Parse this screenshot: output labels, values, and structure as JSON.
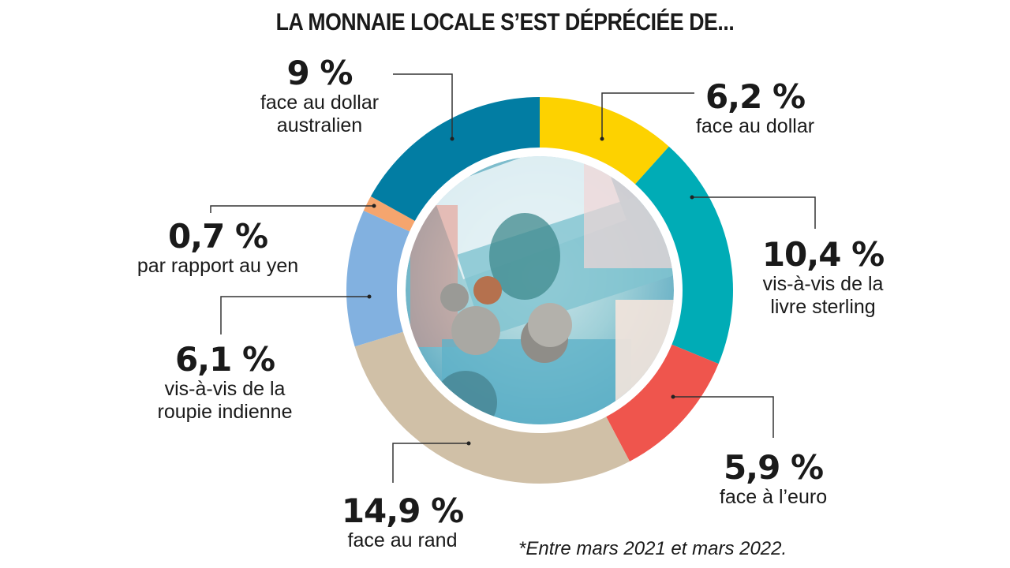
{
  "title": "LA MONNAIE LOCALE S’EST DÉPRÉCIÉE DE...",
  "footnote": "*Entre mars 2021 et mars 2022.",
  "chart_data": {
    "type": "pie",
    "donut": true,
    "title": "LA MONNAIE LOCALE S’EST DÉPRÉCIÉE DE...",
    "start": "top",
    "direction": "clockwise",
    "slices": [
      {
        "value": 6.2,
        "label": "6,2 %",
        "desc": [
          "face au dollar"
        ],
        "color": "#FDD200"
      },
      {
        "value": 10.4,
        "label": "10,4 %",
        "desc": [
          "vis-à-vis de la",
          "livre sterling"
        ],
        "color": "#00ACB6"
      },
      {
        "value": 5.9,
        "label": "5,9 %",
        "desc": [
          "face à l’euro"
        ],
        "color": "#EF554D"
      },
      {
        "value": 14.9,
        "label": "14,9 %",
        "desc": [
          "face au rand"
        ],
        "color": "#D0C0A7"
      },
      {
        "value": 6.1,
        "label": "6,1 %",
        "desc": [
          "vis-à-vis de la",
          "roupie indienne"
        ],
        "color": "#82B1E0"
      },
      {
        "value": 0.7,
        "label": "0,7 %",
        "desc": [
          "par rapport au yen"
        ],
        "color": "#F5A56E"
      },
      {
        "value": 9,
        "label": "9 %",
        "desc": [
          "face au dollar",
          "australien"
        ],
        "color": "#027DA3"
      }
    ],
    "center_image": "mauritian-rupee-banknotes-and-coins"
  }
}
